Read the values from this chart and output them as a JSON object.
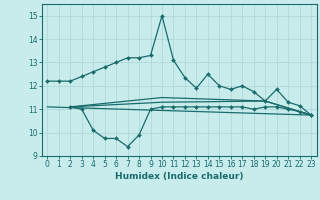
{
  "xlabel": "Humidex (Indice chaleur)",
  "xlim": [
    -0.5,
    23.5
  ],
  "ylim": [
    9,
    15.5
  ],
  "yticks": [
    9,
    10,
    11,
    12,
    13,
    14,
    15
  ],
  "xticks": [
    0,
    1,
    2,
    3,
    4,
    5,
    6,
    7,
    8,
    9,
    10,
    11,
    12,
    13,
    14,
    15,
    16,
    17,
    18,
    19,
    20,
    21,
    22,
    23
  ],
  "bg_color": "#c8ecec",
  "grid_color": "#afd8d8",
  "line_color": "#1a6b6b",
  "series1_x": [
    0,
    1,
    2,
    3,
    4,
    5,
    6,
    7,
    8,
    9,
    10,
    11,
    12,
    13,
    14,
    15,
    16,
    17,
    18,
    19,
    20,
    21,
    22,
    23
  ],
  "series1_y": [
    12.2,
    12.2,
    12.2,
    12.4,
    12.6,
    12.8,
    13.0,
    13.2,
    13.2,
    13.3,
    15.0,
    13.1,
    12.35,
    11.9,
    12.5,
    12.0,
    11.85,
    12.0,
    11.75,
    11.35,
    11.85,
    11.3,
    11.15,
    10.75
  ],
  "series2_x": [
    2,
    3,
    4,
    5,
    6,
    7,
    8,
    9,
    10,
    11,
    12,
    13,
    14,
    15,
    16,
    17,
    18,
    19,
    20,
    21,
    22,
    23
  ],
  "series2_y": [
    11.1,
    11.0,
    10.1,
    9.75,
    9.75,
    9.4,
    9.9,
    11.0,
    11.1,
    11.1,
    11.1,
    11.1,
    11.1,
    11.1,
    11.1,
    11.1,
    11.0,
    11.1,
    11.1,
    11.0,
    10.9,
    10.75
  ],
  "series3_x": [
    0,
    23
  ],
  "series3_y": [
    11.1,
    10.75
  ],
  "series4_x": [
    2,
    10,
    19,
    23
  ],
  "series4_y": [
    11.1,
    11.3,
    11.35,
    10.75
  ],
  "series5_x": [
    2,
    10,
    19,
    23
  ],
  "series5_y": [
    11.1,
    11.5,
    11.35,
    10.75
  ]
}
